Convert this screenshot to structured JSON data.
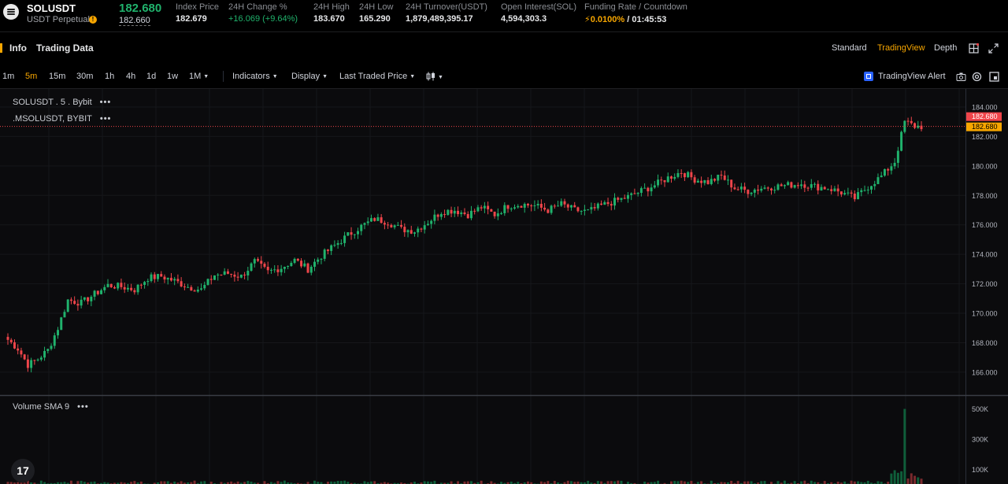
{
  "ticker": {
    "symbol": "SOLUSDT",
    "contract_type": "USDT Perpetual",
    "last_price": "182.680",
    "mark_price": "182.660",
    "stats": [
      {
        "label": "Index Price",
        "value": "182.679"
      },
      {
        "label": "24H Change %",
        "value": "+16.069 (+9.64%)"
      },
      {
        "label": "24H High",
        "value": "183.670"
      },
      {
        "label": "24H Low",
        "value": "165.290"
      },
      {
        "label": "24H Turnover(USDT)",
        "value": "1,879,489,395.17"
      },
      {
        "label": "Open Interest(SOL)",
        "value": "4,594,303.3"
      }
    ],
    "funding_label": "Funding Rate / Countdown",
    "funding_rate": "0.0100%",
    "countdown": "01:45:53",
    "funding_separator": " / "
  },
  "header": {
    "tabs": [
      "Info",
      "Trading Data"
    ],
    "views": [
      "Standard",
      "TradingView",
      "Depth"
    ],
    "active_view": "TradingView"
  },
  "toolbar": {
    "intervals": [
      "1m",
      "5m",
      "15m",
      "30m",
      "1h",
      "4h",
      "1d",
      "1w",
      "1M"
    ],
    "active_interval": "5m",
    "indicators_label": "Indicators",
    "display_label": "Display",
    "price_type_label": "Last Traded Price",
    "alert_label": "TradingView Alert"
  },
  "legends": {
    "main_series": "SOLUSDT . 5 . Bybit",
    "mark_series": ".MSOLUSDT, BYBIT",
    "volume": "Volume SMA 9",
    "dots": "•••"
  },
  "tv_logo": "17",
  "colors": {
    "up": "#20b26c",
    "down": "#ef454a",
    "accent": "#f7a600",
    "grid": "#16171a"
  },
  "chart_data": {
    "type": "candlestick",
    "x_interval": "5m",
    "price_axis": {
      "ylim": [
        164.5,
        184.8
      ],
      "ticks": [
        184,
        182,
        180,
        178,
        176,
        174,
        172,
        170,
        168,
        166
      ],
      "tick_labels": [
        "184.000",
        "182.000",
        "180.000",
        "178.000",
        "176.000",
        "174.000",
        "172.000",
        "170.000",
        "168.000",
        "166.000"
      ]
    },
    "last_price_label": "182.680",
    "mark_price_label": "182.680",
    "close_path": [
      [
        0,
        168.2
      ],
      [
        3,
        167.6
      ],
      [
        6,
        166.5
      ],
      [
        9,
        166.9
      ],
      [
        12,
        167.5
      ],
      [
        15,
        169.0
      ],
      [
        18,
        170.9
      ],
      [
        22,
        170.7
      ],
      [
        26,
        171.3
      ],
      [
        30,
        171.9
      ],
      [
        34,
        171.8
      ],
      [
        38,
        171.6
      ],
      [
        42,
        172.4
      ],
      [
        46,
        172.5
      ],
      [
        50,
        172.2
      ],
      [
        54,
        171.8
      ],
      [
        58,
        171.6
      ],
      [
        62,
        172.6
      ],
      [
        66,
        172.7
      ],
      [
        70,
        172.5
      ],
      [
        74,
        173.5
      ],
      [
        78,
        172.8
      ],
      [
        82,
        173.1
      ],
      [
        86,
        173.6
      ],
      [
        90,
        173.0
      ],
      [
        94,
        173.9
      ],
      [
        98,
        174.6
      ],
      [
        102,
        175.3
      ],
      [
        106,
        175.9
      ],
      [
        110,
        176.4
      ],
      [
        114,
        176.2
      ],
      [
        118,
        175.7
      ],
      [
        122,
        175.6
      ],
      [
        126,
        176.2
      ],
      [
        130,
        176.9
      ],
      [
        134,
        177.0
      ],
      [
        138,
        176.7
      ],
      [
        142,
        177.2
      ],
      [
        146,
        176.7
      ],
      [
        150,
        177.3
      ],
      [
        154,
        177.4
      ],
      [
        158,
        177.3
      ],
      [
        162,
        177.0
      ],
      [
        166,
        177.4
      ],
      [
        170,
        177.0
      ],
      [
        174,
        176.9
      ],
      [
        178,
        177.3
      ],
      [
        182,
        177.6
      ],
      [
        186,
        177.9
      ],
      [
        190,
        178.3
      ],
      [
        194,
        178.7
      ],
      [
        198,
        179.2
      ],
      [
        202,
        179.6
      ],
      [
        206,
        179.1
      ],
      [
        210,
        178.9
      ],
      [
        214,
        179.3
      ],
      [
        218,
        178.5
      ],
      [
        222,
        178.3
      ],
      [
        226,
        178.5
      ],
      [
        230,
        178.6
      ],
      [
        234,
        178.7
      ],
      [
        238,
        178.8
      ],
      [
        242,
        178.6
      ],
      [
        246,
        178.5
      ],
      [
        250,
        178.2
      ],
      [
        254,
        177.8
      ],
      [
        258,
        178.6
      ],
      [
        262,
        179.3
      ],
      [
        266,
        180.3
      ],
      [
        269,
        183.0
      ],
      [
        272,
        182.7
      ],
      [
        274,
        182.68
      ]
    ],
    "volume_axis": {
      "ylim": [
        0,
        560000
      ],
      "tick_labels": [
        "500K",
        "300K",
        "100K"
      ],
      "ticks": [
        500000,
        300000,
        100000
      ]
    },
    "volume_spike": {
      "index": 269,
      "value": 500000
    }
  }
}
